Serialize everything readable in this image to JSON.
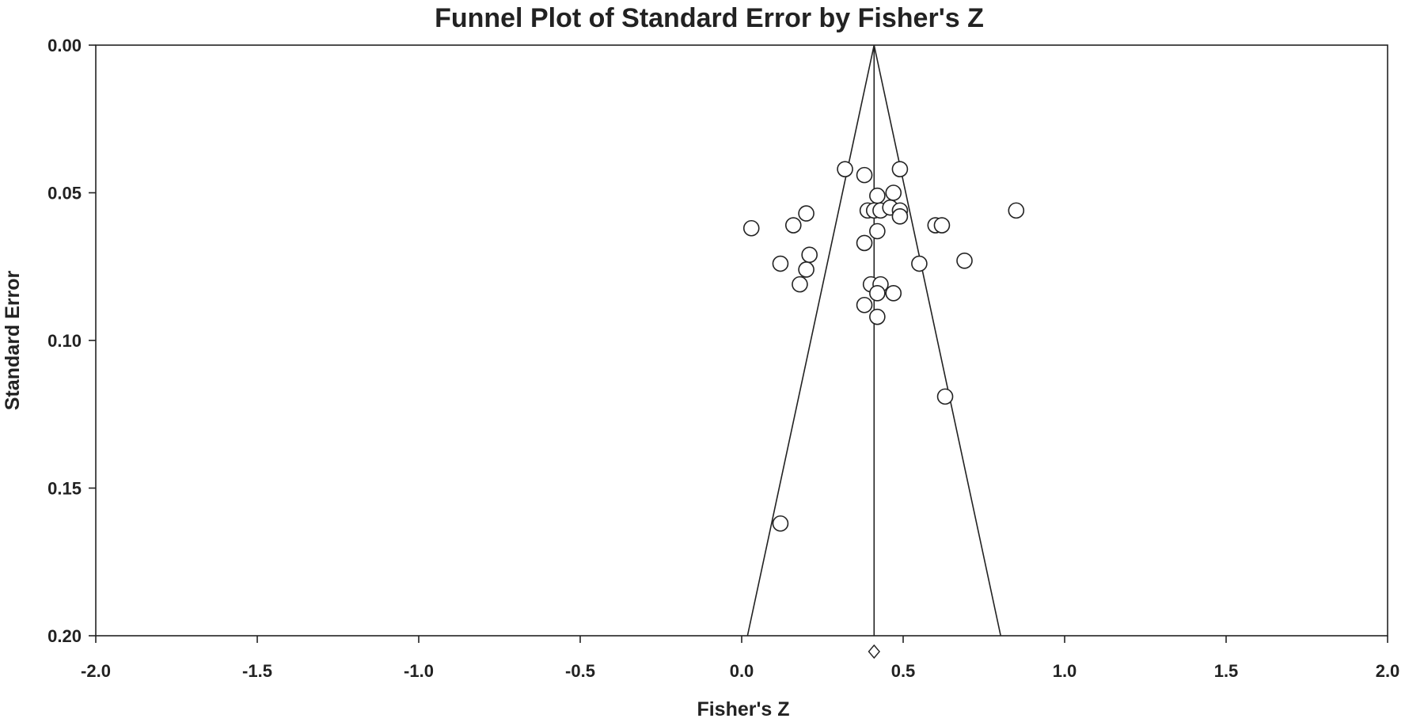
{
  "chart_data": {
    "type": "scatter",
    "title": "Funnel Plot of Standard Error by Fisher's Z",
    "xlabel": "Fisher's Z",
    "ylabel": "Standard Error",
    "xlim": [
      -2.0,
      2.0
    ],
    "ylim": [
      0.0,
      0.2
    ],
    "y_inverted": true,
    "x_ticks": [
      "-2.0",
      "-1.5",
      "-1.0",
      "-0.5",
      "0.0",
      "0.5",
      "1.0",
      "1.5",
      "2.0"
    ],
    "x_tick_values": [
      -2.0,
      -1.5,
      -1.0,
      -0.5,
      0.0,
      0.5,
      1.0,
      1.5,
      2.0
    ],
    "y_ticks": [
      "0.00",
      "0.05",
      "0.10",
      "0.15",
      "0.20"
    ],
    "y_tick_values": [
      0.0,
      0.05,
      0.1,
      0.15,
      0.2
    ],
    "grid": false,
    "pooled_estimate": 0.41,
    "funnel_z": 1.96,
    "points": [
      {
        "x": 0.32,
        "y": 0.042
      },
      {
        "x": 0.38,
        "y": 0.044
      },
      {
        "x": 0.49,
        "y": 0.042
      },
      {
        "x": 0.42,
        "y": 0.051
      },
      {
        "x": 0.47,
        "y": 0.05
      },
      {
        "x": 0.39,
        "y": 0.056
      },
      {
        "x": 0.41,
        "y": 0.056
      },
      {
        "x": 0.43,
        "y": 0.056
      },
      {
        "x": 0.46,
        "y": 0.055
      },
      {
        "x": 0.49,
        "y": 0.056
      },
      {
        "x": 0.49,
        "y": 0.058
      },
      {
        "x": 0.2,
        "y": 0.057
      },
      {
        "x": 0.16,
        "y": 0.061
      },
      {
        "x": 0.03,
        "y": 0.062
      },
      {
        "x": 0.42,
        "y": 0.063
      },
      {
        "x": 0.6,
        "y": 0.061
      },
      {
        "x": 0.62,
        "y": 0.061
      },
      {
        "x": 0.85,
        "y": 0.056
      },
      {
        "x": 0.38,
        "y": 0.067
      },
      {
        "x": 0.21,
        "y": 0.071
      },
      {
        "x": 0.12,
        "y": 0.074
      },
      {
        "x": 0.2,
        "y": 0.076
      },
      {
        "x": 0.55,
        "y": 0.074
      },
      {
        "x": 0.69,
        "y": 0.073
      },
      {
        "x": 0.18,
        "y": 0.081
      },
      {
        "x": 0.4,
        "y": 0.081
      },
      {
        "x": 0.43,
        "y": 0.081
      },
      {
        "x": 0.42,
        "y": 0.084
      },
      {
        "x": 0.47,
        "y": 0.084
      },
      {
        "x": 0.38,
        "y": 0.088
      },
      {
        "x": 0.42,
        "y": 0.092
      },
      {
        "x": 0.63,
        "y": 0.119
      },
      {
        "x": 0.12,
        "y": 0.162
      }
    ]
  }
}
